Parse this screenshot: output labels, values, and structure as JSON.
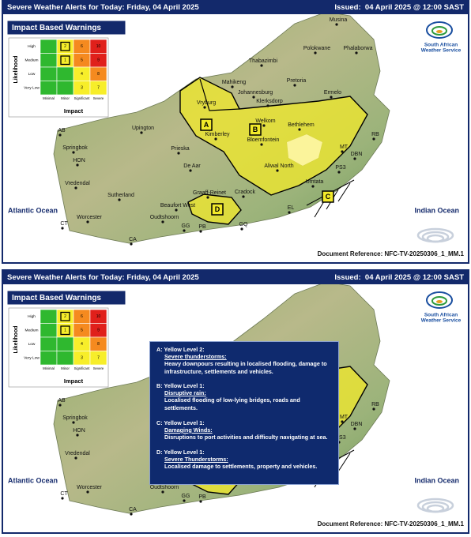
{
  "panels": [
    {
      "header": {
        "title": "Severe Weather Alerts for Today: Friday, 04 April 2025",
        "issued": "Issued:  04 April 2025 @ 12:00 SAST"
      },
      "logo": {
        "lines": [
          "South African",
          "Weather Service"
        ]
      },
      "impact_matrix": {
        "title": "Impact Based Warnings",
        "y_label": "Likelihood",
        "x_label": "Impact",
        "rows": [
          "High",
          "Medium",
          "Low",
          "Very Low"
        ],
        "columns": [
          "Minimal",
          "Minor",
          "Significant",
          "Severe"
        ],
        "cells": [
          [
            {
              "color": "#2fb82f"
            },
            {
              "color": "#f7ee2a",
              "label": "2",
              "highlighted": true
            },
            {
              "color": "#f58a1f",
              "label": "6"
            },
            {
              "color": "#e0201b",
              "label": "10"
            }
          ],
          [
            {
              "color": "#2fb82f"
            },
            {
              "color": "#f7ee2a",
              "label": "1",
              "highlighted": true
            },
            {
              "color": "#f58a1f",
              "label": "5"
            },
            {
              "color": "#e0201b",
              "label": "9"
            }
          ],
          [
            {
              "color": "#2fb82f"
            },
            {
              "color": "#2fb82f"
            },
            {
              "color": "#f7ee2a",
              "label": "4"
            },
            {
              "color": "#f58a1f",
              "label": "8"
            }
          ],
          [
            {
              "color": "#2fb82f"
            },
            {
              "color": "#2fb82f"
            },
            {
              "color": "#f7ee2a",
              "label": "3"
            },
            {
              "color": "#f7ee2a",
              "label": "7"
            }
          ]
        ]
      },
      "places": [
        "Musina",
        "Polokwane",
        "Phalaborwa",
        "Thabazimbi",
        "Pretoria",
        "Mahikeng",
        "Johannesburg",
        "Klerksdorp",
        "Ermelo",
        "Vryburg",
        "Welkom",
        "Bethlehem",
        "Upington",
        "Kimberley",
        "Bloemfontein",
        "RB",
        "Springbok",
        "Prieska",
        "MT",
        "DBN",
        "HON",
        "Aliwal North",
        "PS3",
        "De Aar",
        "Vredendal",
        "Umtata",
        "Sutherland",
        "Graaff-Reinet",
        "Cradock",
        "Beaufort West",
        "EL",
        "Worcester",
        "Oudtshoorn",
        "CT",
        "GG",
        "PB",
        "GQ",
        "CA",
        "AB"
      ],
      "oceans": [
        "Atlantic Ocean",
        "Indian Ocean"
      ],
      "regions": [
        "A",
        "B",
        "C",
        "D"
      ],
      "document_reference": "Document Reference: NFC-TV-20250306_1_MM.1"
    },
    {
      "header": {
        "title": "Severe Weather Alerts for Today: Friday, 04 April 2025",
        "issued": "Issued:  04 April 2025 @ 12:00 SAST"
      },
      "logo": {
        "lines": [
          "South African",
          "Weather Service"
        ]
      },
      "impact_matrix": {
        "title": "Impact Based Warnings",
        "y_label": "Likelihood",
        "x_label": "Impact",
        "rows": [
          "High",
          "Medium",
          "Low",
          "Very Low"
        ],
        "columns": [
          "Minimal",
          "Minor",
          "Significant",
          "Severe"
        ],
        "cells": [
          [
            {
              "color": "#2fb82f"
            },
            {
              "color": "#f7ee2a",
              "label": "2",
              "highlighted": true
            },
            {
              "color": "#f58a1f",
              "label": "6"
            },
            {
              "color": "#e0201b",
              "label": "10"
            }
          ],
          [
            {
              "color": "#2fb82f"
            },
            {
              "color": "#f7ee2a",
              "label": "1",
              "highlighted": true
            },
            {
              "color": "#f58a1f",
              "label": "5"
            },
            {
              "color": "#e0201b",
              "label": "9"
            }
          ],
          [
            {
              "color": "#2fb82f"
            },
            {
              "color": "#2fb82f"
            },
            {
              "color": "#f7ee2a",
              "label": "4"
            },
            {
              "color": "#f58a1f",
              "label": "8"
            }
          ],
          [
            {
              "color": "#2fb82f"
            },
            {
              "color": "#2fb82f"
            },
            {
              "color": "#f7ee2a",
              "label": "3"
            },
            {
              "color": "#f7ee2a",
              "label": "7"
            }
          ]
        ]
      },
      "places": [
        "AB",
        "Springbok",
        "HON",
        "Vredendal",
        "Worcester",
        "CT",
        "CA",
        "Oudtshoorn",
        "GG",
        "PB",
        "MT",
        "DBN",
        "PS3",
        "RB"
      ],
      "oceans": [
        "Atlantic Ocean",
        "Indian Ocean"
      ],
      "info_box": {
        "alerts": [
          {
            "level": "A: Yellow Level 2:",
            "hazard": "Severe thunderstorms:",
            "description": "Heavy downpours resulting in  localised flooding, damage to infrastructure, settlements and vehicles."
          },
          {
            "level": "B: Yellow Level 1:",
            "hazard": "Disruptive rain:",
            "description": "Localised flooding of low-lying bridges, roads and settlements."
          },
          {
            "level": "C: Yellow Level 1:",
            "hazard": "Damaging Winds:",
            "description": "Disruptions to port activities and difficulty navigating at sea."
          },
          {
            "level": "D: Yellow Level 1:",
            "hazard": "Severe Thunderstorms:",
            "description": "Localised damage to settlements, property and vehicles."
          }
        ]
      },
      "document_reference": "Document Reference: NFC-TV-20250306_1_MM.1"
    }
  ]
}
